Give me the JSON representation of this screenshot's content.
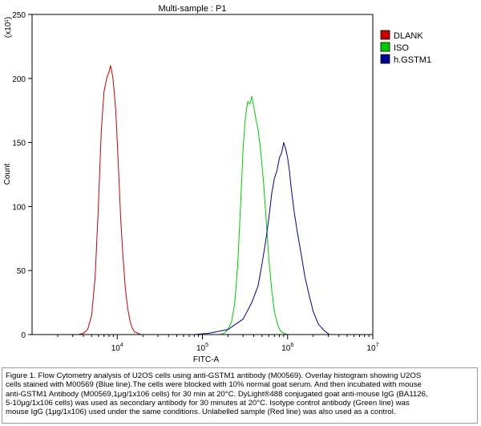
{
  "chart_data": {
    "type": "histogram",
    "title": "Multi-sample : P1",
    "xlabel": "FITC-A",
    "ylabel": "Count",
    "y_multiplier": "(x10¹)",
    "x_scale": "log",
    "xlim": [
      1000,
      10000000
    ],
    "ylim": [
      0,
      250
    ],
    "x_ticks": [
      {
        "value": 10000,
        "base": "10",
        "exp": "4"
      },
      {
        "value": 100000,
        "base": "10",
        "exp": "5"
      },
      {
        "value": 1000000,
        "base": "10",
        "exp": "6"
      },
      {
        "value": 10000000,
        "base": "10",
        "exp": "7"
      }
    ],
    "y_ticks": [
      0,
      50,
      100,
      150,
      200,
      250
    ],
    "legend": {
      "placement": "top-right",
      "entries": [
        "DLANK",
        "ISO",
        "h.GSTM1"
      ]
    },
    "series": [
      {
        "name": "DLANK",
        "color": "#cc0000",
        "x": [
          3500,
          4000,
          4500,
          5000,
          5500,
          6000,
          6500,
          7000,
          7500,
          8000,
          8300,
          8600,
          8900,
          9200,
          9600,
          10000,
          10500,
          11000,
          11700,
          12500,
          13300,
          14200,
          15000,
          16000,
          17500,
          19000
        ],
        "y": [
          0,
          1,
          4,
          15,
          45,
          100,
          160,
          190,
          200,
          205,
          210,
          206,
          200,
          190,
          175,
          150,
          120,
          90,
          60,
          35,
          20,
          10,
          5,
          2,
          1,
          0
        ]
      },
      {
        "name": "ISO",
        "color": "#00cc00",
        "x": [
          160000,
          180000,
          200000,
          220000,
          240000,
          260000,
          280000,
          300000,
          320000,
          340000,
          360000,
          380000,
          400000,
          420000,
          450000,
          480000,
          520000,
          560000,
          600000,
          650000,
          700000,
          760000,
          820000,
          900000,
          1000000
        ],
        "y": [
          0,
          1,
          4,
          10,
          25,
          55,
          100,
          145,
          170,
          182,
          180,
          186,
          178,
          170,
          160,
          145,
          120,
          90,
          60,
          35,
          18,
          8,
          3,
          1,
          0
        ]
      },
      {
        "name": "h.GSTM1",
        "color": "#000099",
        "x": [
          80000,
          120000,
          200000,
          300000,
          380000,
          450000,
          500000,
          550000,
          600000,
          650000,
          700000,
          750000,
          800000,
          850000,
          900000,
          950000,
          1000000,
          1050000,
          1100000,
          1200000,
          1300000,
          1450000,
          1600000,
          1800000,
          2000000,
          2300000,
          2700000,
          3100000
        ],
        "y": [
          0,
          1,
          4,
          12,
          25,
          38,
          55,
          72,
          90,
          110,
          122,
          128,
          138,
          142,
          150,
          145,
          138,
          128,
          115,
          95,
          80,
          62,
          45,
          30,
          18,
          8,
          3,
          0
        ]
      }
    ]
  },
  "caption": {
    "lines": [
      "Figure 1. Flow Cytometry analysis of U2OS cells using anti-GSTM1 antibody (M00569). Overlay histogram showing U2OS",
      "cells stained with M00569 (Blue line).The cells were blocked with 10% normal goat serum. And then incubated with mouse",
      "anti-GSTM1 Antibody (M00569,1μg/1x106 cells) for 30 min at 20°C. DyLight®488 conjugated goat anti-mouse IgG (BA1126,",
      "5-10μg/1x106 cells) was used as secondary antibody for 30 minutes at 20°C. Isotype control antibody (Green line) was",
      "mouse IgG (1μg/1x106) used under the same conditions. Unlabelled sample (Red line) was also used as a control."
    ]
  }
}
